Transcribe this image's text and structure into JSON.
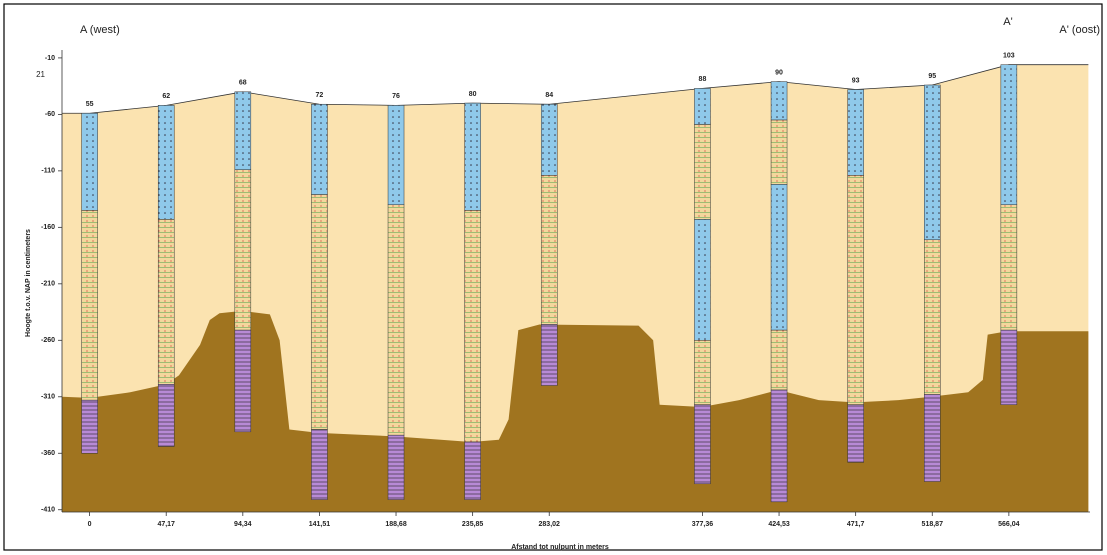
{
  "chart_data": {
    "type": "cross-section",
    "annotations": [
      "A (west)",
      "A' (oost)",
      "A'",
      "21"
    ],
    "ylabel": "Hoogte t.o.v. NAP in centimeters",
    "xlabel": "Afstand tot nulpunt in meters",
    "xlim": [
      -17,
      616
    ],
    "ylim": [
      -412,
      -3
    ],
    "yticks": [
      -10,
      -60,
      -110,
      -160,
      -210,
      -260,
      -310,
      -360,
      -410
    ],
    "xticks": [
      0,
      {
        "value": 47.17,
        "label": "47,17"
      },
      {
        "value": 94.34,
        "label": "94,34"
      },
      {
        "value": 141.51,
        "label": "141,51"
      },
      {
        "value": 188.68,
        "label": "188,68"
      },
      {
        "value": 235.85,
        "label": "235,85"
      },
      {
        "value": 283.02,
        "label": "283,02"
      },
      {
        "value": 377.36,
        "label": "377,36"
      },
      {
        "value": 424.53,
        "label": "424,53"
      },
      {
        "value": 471.7,
        "label": "471,7"
      },
      {
        "value": 518.87,
        "label": "518,87"
      },
      {
        "value": 566.04,
        "label": "566,04"
      }
    ],
    "surface": {
      "color": "#fbe3b0",
      "x": [
        -17,
        0,
        47.17,
        94.34,
        141.51,
        188.68,
        235.85,
        283.02,
        377.36,
        424.53,
        471.7,
        518.87,
        566.04,
        615
      ],
      "y": [
        -59,
        -59,
        -52,
        -40,
        -51,
        -52,
        -50,
        -51,
        -37,
        -31,
        -38,
        -34,
        -16,
        -16
      ]
    },
    "lower_unit": {
      "color": "#a0741f",
      "x": [
        -17,
        0,
        25,
        47,
        55,
        68,
        74,
        80,
        94,
        111,
        117,
        123,
        141,
        188,
        235,
        252,
        258,
        264,
        277,
        338,
        347,
        351,
        377,
        400,
        424,
        449,
        471,
        498,
        518,
        541,
        550,
        553,
        565,
        615
      ],
      "y": [
        -310,
        -311,
        -306,
        -299,
        -291,
        -264,
        -242,
        -236,
        -234,
        -237,
        -260,
        -339,
        -342,
        -345,
        -350,
        -348,
        -330,
        -251,
        -246,
        -247,
        -260,
        -317,
        -319,
        -313,
        -304,
        -313,
        -315,
        -313,
        -310,
        -306,
        -295,
        -255,
        -252,
        -252
      ]
    },
    "layer_colors": {
      "sand": "#8fc9ea",
      "clay": "#f3d79c",
      "peat": "#b88ad6"
    },
    "boreholes": [
      {
        "x": 0,
        "label": 55,
        "top": -59,
        "layers": [
          {
            "kind": "sand",
            "to": -145
          },
          {
            "kind": "clay",
            "to": -313
          },
          {
            "kind": "peat",
            "to": -360
          }
        ]
      },
      {
        "x": 47.17,
        "label": 62,
        "top": -52,
        "layers": [
          {
            "kind": "sand",
            "to": -153
          },
          {
            "kind": "clay",
            "to": -299
          },
          {
            "kind": "peat",
            "to": -354
          }
        ]
      },
      {
        "x": 94.34,
        "label": 68,
        "top": -40,
        "layers": [
          {
            "kind": "sand",
            "to": -109
          },
          {
            "kind": "clay",
            "to": -251
          },
          {
            "kind": "peat",
            "to": -341
          }
        ]
      },
      {
        "x": 141.51,
        "label": 72,
        "top": -51,
        "layers": [
          {
            "kind": "sand",
            "to": -131
          },
          {
            "kind": "clay",
            "to": -339
          },
          {
            "kind": "peat",
            "to": -401
          }
        ]
      },
      {
        "x": 188.68,
        "label": 76,
        "top": -52,
        "layers": [
          {
            "kind": "sand",
            "to": -140
          },
          {
            "kind": "clay",
            "to": -344
          },
          {
            "kind": "peat",
            "to": -401
          }
        ]
      },
      {
        "x": 235.85,
        "label": 80,
        "top": -50,
        "layers": [
          {
            "kind": "sand",
            "to": -145
          },
          {
            "kind": "clay",
            "to": -350
          },
          {
            "kind": "peat",
            "to": -401
          }
        ]
      },
      {
        "x": 283.02,
        "label": 84,
        "top": -51,
        "layers": [
          {
            "kind": "sand",
            "to": -114
          },
          {
            "kind": "clay",
            "to": -246
          },
          {
            "kind": "peat",
            "to": -300
          }
        ]
      },
      {
        "x": 377.36,
        "label": 88,
        "top": -37,
        "layers": [
          {
            "kind": "sand",
            "to": -69
          },
          {
            "kind": "clay",
            "to": -153
          },
          {
            "kind": "sand",
            "to": -260
          },
          {
            "kind": "clay",
            "to": -317
          },
          {
            "kind": "peat",
            "to": -387
          }
        ]
      },
      {
        "x": 424.53,
        "label": 90,
        "top": -31,
        "layers": [
          {
            "kind": "sand",
            "to": -65
          },
          {
            "kind": "clay",
            "to": -122
          },
          {
            "kind": "sand",
            "to": -251
          },
          {
            "kind": "clay",
            "to": -304
          },
          {
            "kind": "peat",
            "to": -403
          }
        ]
      },
      {
        "x": 471.7,
        "label": 93,
        "top": -38,
        "layers": [
          {
            "kind": "sand",
            "to": -114
          },
          {
            "kind": "clay",
            "to": -317
          },
          {
            "kind": "peat",
            "to": -368
          }
        ]
      },
      {
        "x": 518.87,
        "label": 95,
        "top": -34,
        "layers": [
          {
            "kind": "sand",
            "to": -171
          },
          {
            "kind": "clay",
            "to": -308
          },
          {
            "kind": "peat",
            "to": -385
          }
        ]
      },
      {
        "x": 566.04,
        "label": 103,
        "top": -16,
        "layers": [
          {
            "kind": "sand",
            "to": -140
          },
          {
            "kind": "clay",
            "to": -251
          },
          {
            "kind": "peat",
            "to": -317
          }
        ]
      }
    ]
  }
}
